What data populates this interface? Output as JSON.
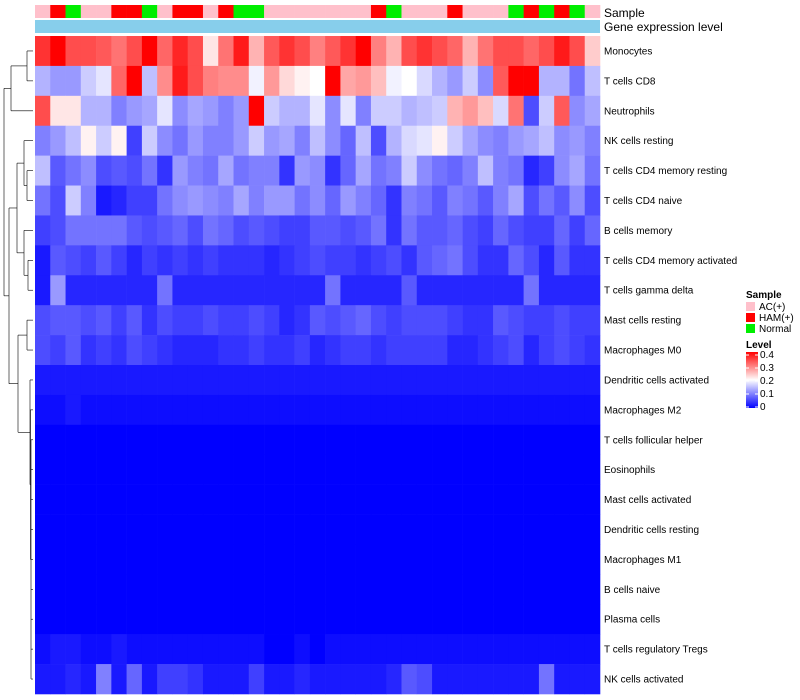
{
  "chart_data": {
    "type": "heatmap",
    "annotation_labels": {
      "sample": "Sample",
      "gene_expression": "Gene expression level"
    },
    "row_labels": [
      "Monocytes",
      "T cells CD8",
      "Neutrophils",
      "NK cells resting",
      "T cells CD4 memory resting",
      "T cells CD4 naive",
      "B cells memory",
      "T cells CD4 memory activated",
      "T cells gamma delta",
      "Mast cells resting",
      "Macrophages M0",
      "Dendritic cells activated",
      "Macrophages M2",
      "T cells follicular helper",
      "Eosinophils",
      "Mast cells activated",
      "Dendritic cells resting",
      "Macrophages M1",
      "B cells naive",
      "Plasma cells",
      "T cells regulatory  Tregs",
      "NK cells activated"
    ],
    "sample_groups": [
      "AC",
      "HAM",
      "Normal",
      "AC",
      "AC",
      "HAM",
      "HAM",
      "Normal",
      "AC",
      "HAM",
      "HAM",
      "AC",
      "HAM",
      "Normal",
      "Normal",
      "AC",
      "AC",
      "AC",
      "AC",
      "AC",
      "AC",
      "AC",
      "HAM",
      "Normal",
      "AC",
      "AC",
      "AC",
      "HAM",
      "AC",
      "AC",
      "AC",
      "Normal",
      "HAM",
      "Normal",
      "HAM",
      "Normal",
      "AC"
    ],
    "values": [
      [
        0.36,
        0.4,
        0.34,
        0.34,
        0.33,
        0.31,
        0.34,
        0.4,
        0.32,
        0.37,
        0.34,
        0.22,
        0.31,
        0.38,
        0.26,
        0.33,
        0.36,
        0.34,
        0.3,
        0.33,
        0.36,
        0.4,
        0.3,
        0.26,
        0.34,
        0.36,
        0.34,
        0.32,
        0.26,
        0.31,
        0.34,
        0.34,
        0.32,
        0.34,
        0.38,
        0.34,
        0.24
      ],
      [
        0.14,
        0.12,
        0.12,
        0.16,
        0.18,
        0.32,
        0.4,
        0.15,
        0.29,
        0.38,
        0.34,
        0.3,
        0.29,
        0.29,
        0.19,
        0.28,
        0.23,
        0.21,
        0.2,
        0.4,
        0.27,
        0.28,
        0.25,
        0.19,
        0.2,
        0.17,
        0.14,
        0.12,
        0.16,
        0.11,
        0.33,
        0.4,
        0.4,
        0.14,
        0.14,
        0.09,
        0.15
      ],
      [
        0.34,
        0.22,
        0.22,
        0.14,
        0.14,
        0.1,
        0.12,
        0.13,
        0.18,
        0.11,
        0.13,
        0.12,
        0.1,
        0.12,
        0.4,
        0.16,
        0.14,
        0.14,
        0.18,
        0.11,
        0.18,
        0.1,
        0.16,
        0.16,
        0.14,
        0.15,
        0.16,
        0.26,
        0.28,
        0.25,
        0.17,
        0.31,
        0.06,
        0.16,
        0.33,
        0.11,
        0.13
      ],
      [
        0.1,
        0.12,
        0.15,
        0.21,
        0.16,
        0.21,
        0.05,
        0.16,
        0.11,
        0.09,
        0.12,
        0.1,
        0.1,
        0.12,
        0.16,
        0.12,
        0.13,
        0.1,
        0.15,
        0.11,
        0.08,
        0.15,
        0.06,
        0.14,
        0.17,
        0.18,
        0.21,
        0.16,
        0.13,
        0.11,
        0.1,
        0.12,
        0.13,
        0.15,
        0.11,
        0.12,
        0.1
      ],
      [
        0.15,
        0.07,
        0.09,
        0.11,
        0.06,
        0.07,
        0.06,
        0.09,
        0.04,
        0.12,
        0.1,
        0.09,
        0.13,
        0.09,
        0.1,
        0.1,
        0.04,
        0.12,
        0.11,
        0.04,
        0.08,
        0.13,
        0.09,
        0.1,
        0.16,
        0.11,
        0.09,
        0.08,
        0.1,
        0.15,
        0.1,
        0.09,
        0.03,
        0.05,
        0.11,
        0.13,
        0.09
      ],
      [
        0.09,
        0.06,
        0.16,
        0.1,
        0.02,
        0.03,
        0.05,
        0.05,
        0.09,
        0.11,
        0.12,
        0.11,
        0.1,
        0.13,
        0.1,
        0.12,
        0.12,
        0.09,
        0.11,
        0.08,
        0.12,
        0.1,
        0.08,
        0.04,
        0.1,
        0.09,
        0.07,
        0.1,
        0.09,
        0.07,
        0.1,
        0.13,
        0.06,
        0.09,
        0.07,
        0.11,
        0.06
      ],
      [
        0.05,
        0.06,
        0.09,
        0.09,
        0.09,
        0.09,
        0.07,
        0.06,
        0.07,
        0.08,
        0.06,
        0.09,
        0.08,
        0.06,
        0.07,
        0.06,
        0.05,
        0.05,
        0.07,
        0.07,
        0.06,
        0.07,
        0.09,
        0.04,
        0.09,
        0.07,
        0.07,
        0.08,
        0.06,
        0.05,
        0.08,
        0.06,
        0.05,
        0.05,
        0.08,
        0.05,
        0.08
      ],
      [
        0.02,
        0.07,
        0.06,
        0.05,
        0.07,
        0.05,
        0.03,
        0.05,
        0.04,
        0.05,
        0.04,
        0.05,
        0.04,
        0.04,
        0.04,
        0.03,
        0.04,
        0.05,
        0.06,
        0.05,
        0.05,
        0.04,
        0.05,
        0.06,
        0.04,
        0.07,
        0.08,
        0.09,
        0.06,
        0.04,
        0.04,
        0.08,
        0.06,
        0.03,
        0.07,
        0.04,
        0.04
      ],
      [
        0.02,
        0.12,
        0.03,
        0.03,
        0.03,
        0.03,
        0.03,
        0.03,
        0.09,
        0.03,
        0.03,
        0.03,
        0.03,
        0.03,
        0.03,
        0.03,
        0.03,
        0.03,
        0.03,
        0.09,
        0.03,
        0.03,
        0.03,
        0.03,
        0.07,
        0.03,
        0.03,
        0.03,
        0.03,
        0.03,
        0.03,
        0.03,
        0.09,
        0.03,
        0.03,
        0.03,
        0.03
      ],
      [
        0.06,
        0.07,
        0.07,
        0.06,
        0.07,
        0.05,
        0.07,
        0.04,
        0.06,
        0.05,
        0.05,
        0.06,
        0.05,
        0.05,
        0.06,
        0.05,
        0.03,
        0.04,
        0.07,
        0.06,
        0.07,
        0.08,
        0.06,
        0.05,
        0.06,
        0.06,
        0.06,
        0.05,
        0.04,
        0.04,
        0.07,
        0.06,
        0.05,
        0.05,
        0.06,
        0.05,
        0.05
      ],
      [
        0.06,
        0.05,
        0.07,
        0.04,
        0.05,
        0.04,
        0.06,
        0.05,
        0.04,
        0.03,
        0.03,
        0.03,
        0.04,
        0.04,
        0.05,
        0.04,
        0.04,
        0.05,
        0.03,
        0.04,
        0.05,
        0.05,
        0.04,
        0.05,
        0.05,
        0.05,
        0.05,
        0.03,
        0.03,
        0.04,
        0.05,
        0.06,
        0.03,
        0.05,
        0.06,
        0.05,
        0.04
      ],
      [
        0.02,
        0.02,
        0.02,
        0.02,
        0.02,
        0.02,
        0.02,
        0.02,
        0.02,
        0.02,
        0.02,
        0.02,
        0.02,
        0.02,
        0.02,
        0.02,
        0.02,
        0.02,
        0.02,
        0.02,
        0.02,
        0.02,
        0.02,
        0.02,
        0.02,
        0.02,
        0.02,
        0.02,
        0.02,
        0.02,
        0.02,
        0.02,
        0.02,
        0.02,
        0.02,
        0.02,
        0.02
      ],
      [
        0.01,
        0.01,
        0.02,
        0.01,
        0.01,
        0.01,
        0.01,
        0.01,
        0.01,
        0.01,
        0.01,
        0.01,
        0.01,
        0.01,
        0.01,
        0.01,
        0.01,
        0.01,
        0.01,
        0.01,
        0.01,
        0.01,
        0.01,
        0.01,
        0.01,
        0.01,
        0.01,
        0.01,
        0.01,
        0.01,
        0.01,
        0.01,
        0.01,
        0.01,
        0.01,
        0.01,
        0.01
      ],
      [
        0.0,
        0.0,
        0.0,
        0.0,
        0.0,
        0.0,
        0.0,
        0.0,
        0.0,
        0.0,
        0.0,
        0.0,
        0.0,
        0.0,
        0.0,
        0.0,
        0.0,
        0.0,
        0.0,
        0.0,
        0.0,
        0.0,
        0.0,
        0.0,
        0.0,
        0.0,
        0.0,
        0.0,
        0.0,
        0.0,
        0.0,
        0.0,
        0.0,
        0.0,
        0.0,
        0.0,
        0.0
      ],
      [
        0.0,
        0.0,
        0.0,
        0.0,
        0.0,
        0.0,
        0.0,
        0.0,
        0.0,
        0.0,
        0.0,
        0.0,
        0.0,
        0.0,
        0.0,
        0.0,
        0.0,
        0.0,
        0.0,
        0.0,
        0.0,
        0.0,
        0.0,
        0.0,
        0.0,
        0.0,
        0.0,
        0.0,
        0.0,
        0.0,
        0.0,
        0.0,
        0.0,
        0.0,
        0.0,
        0.0,
        0.0
      ],
      [
        0.0,
        0.0,
        0.0,
        0.0,
        0.0,
        0.0,
        0.0,
        0.0,
        0.0,
        0.0,
        0.0,
        0.0,
        0.0,
        0.0,
        0.0,
        0.0,
        0.0,
        0.0,
        0.0,
        0.0,
        0.0,
        0.0,
        0.0,
        0.0,
        0.0,
        0.0,
        0.0,
        0.0,
        0.0,
        0.0,
        0.0,
        0.0,
        0.0,
        0.0,
        0.0,
        0.0,
        0.0
      ],
      [
        0.0,
        0.0,
        0.0,
        0.0,
        0.0,
        0.0,
        0.0,
        0.0,
        0.0,
        0.0,
        0.0,
        0.0,
        0.0,
        0.0,
        0.0,
        0.0,
        0.0,
        0.0,
        0.0,
        0.0,
        0.0,
        0.0,
        0.0,
        0.0,
        0.0,
        0.0,
        0.0,
        0.0,
        0.0,
        0.0,
        0.0,
        0.0,
        0.0,
        0.0,
        0.0,
        0.0,
        0.0
      ],
      [
        0.0,
        0.0,
        0.0,
        0.0,
        0.0,
        0.0,
        0.0,
        0.0,
        0.0,
        0.0,
        0.0,
        0.0,
        0.0,
        0.0,
        0.0,
        0.0,
        0.0,
        0.0,
        0.0,
        0.0,
        0.0,
        0.0,
        0.0,
        0.0,
        0.0,
        0.0,
        0.0,
        0.0,
        0.0,
        0.0,
        0.0,
        0.0,
        0.0,
        0.0,
        0.0,
        0.0,
        0.0
      ],
      [
        0.0,
        0.0,
        0.0,
        0.0,
        0.0,
        0.0,
        0.0,
        0.0,
        0.0,
        0.0,
        0.0,
        0.0,
        0.0,
        0.0,
        0.0,
        0.0,
        0.0,
        0.0,
        0.0,
        0.0,
        0.0,
        0.0,
        0.0,
        0.0,
        0.0,
        0.0,
        0.0,
        0.0,
        0.0,
        0.0,
        0.0,
        0.0,
        0.0,
        0.0,
        0.0,
        0.0,
        0.0
      ],
      [
        0.0,
        0.0,
        0.0,
        0.0,
        0.0,
        0.0,
        0.0,
        0.0,
        0.0,
        0.0,
        0.0,
        0.0,
        0.0,
        0.0,
        0.0,
        0.0,
        0.0,
        0.0,
        0.0,
        0.0,
        0.0,
        0.0,
        0.0,
        0.0,
        0.0,
        0.0,
        0.0,
        0.0,
        0.0,
        0.0,
        0.0,
        0.0,
        0.0,
        0.0,
        0.0,
        0.0,
        0.0
      ],
      [
        0.01,
        0.02,
        0.02,
        0.01,
        0.01,
        0.02,
        0.01,
        0.01,
        0.01,
        0.01,
        0.01,
        0.01,
        0.01,
        0.01,
        0.01,
        0.0,
        0.0,
        0.01,
        0.0,
        0.01,
        0.01,
        0.01,
        0.01,
        0.01,
        0.01,
        0.01,
        0.01,
        0.01,
        0.01,
        0.01,
        0.01,
        0.01,
        0.01,
        0.01,
        0.01,
        0.01,
        0.01
      ],
      [
        0.02,
        0.02,
        0.03,
        0.02,
        0.1,
        0.02,
        0.08,
        0.02,
        0.05,
        0.05,
        0.04,
        0.02,
        0.02,
        0.02,
        0.05,
        0.02,
        0.02,
        0.03,
        0.02,
        0.02,
        0.02,
        0.02,
        0.02,
        0.03,
        0.07,
        0.06,
        0.02,
        0.02,
        0.02,
        0.02,
        0.02,
        0.02,
        0.02,
        0.09,
        0.02,
        0.02,
        0.02
      ]
    ],
    "legend": {
      "sample_title": "Sample",
      "sample_entries": [
        {
          "key": "AC",
          "label": "AC(+)",
          "color": "#ffc0cb"
        },
        {
          "key": "HAM",
          "label": "HAM(+)",
          "color": "#ff0000"
        },
        {
          "key": "Normal",
          "label": "Normal",
          "color": "#00ee00"
        }
      ],
      "level_title": "Level",
      "level_ticks": [
        "0.4",
        "0.3",
        "0.2",
        "0.1",
        "0"
      ],
      "level_range": [
        0,
        0.4
      ]
    },
    "colors": {
      "low": "#0000ff",
      "mid": "#ffffff",
      "high": "#ff0000",
      "gene_bar": "#87ceeb"
    }
  }
}
